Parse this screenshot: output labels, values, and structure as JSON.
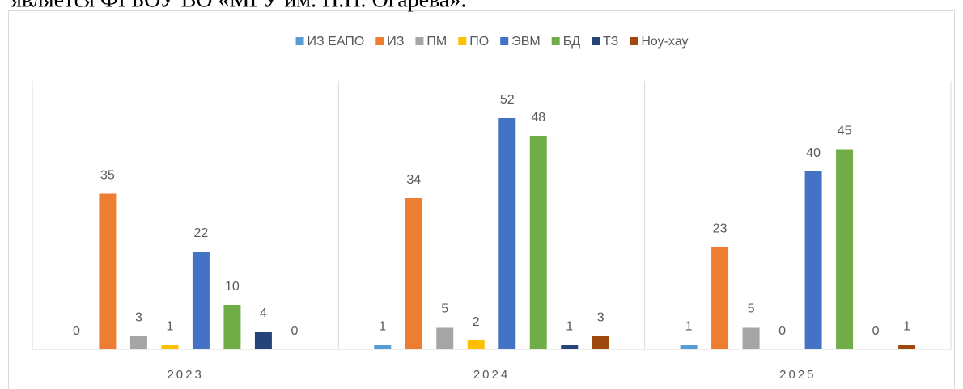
{
  "caption": "является ФГБОУ ВО «МГУ им. Н.П. Огарёва».",
  "chart_data": {
    "type": "bar",
    "categories": [
      "2023",
      "2024",
      "2025"
    ],
    "series": [
      {
        "name": "ИЗ ЕАПО",
        "color": "#5b9bd5",
        "values": [
          0,
          1,
          1
        ]
      },
      {
        "name": "ИЗ",
        "color": "#ed7d31",
        "values": [
          35,
          34,
          23
        ]
      },
      {
        "name": "ПМ",
        "color": "#a5a5a5",
        "values": [
          3,
          5,
          5
        ]
      },
      {
        "name": "ПО",
        "color": "#ffc000",
        "values": [
          1,
          2,
          0
        ]
      },
      {
        "name": "ЭВМ",
        "color": "#4472c4",
        "values": [
          22,
          52,
          40
        ]
      },
      {
        "name": "БД",
        "color": "#70ad47",
        "values": [
          10,
          48,
          45
        ]
      },
      {
        "name": "ТЗ",
        "color": "#264478",
        "values": [
          4,
          1,
          0
        ]
      },
      {
        "name": "Ноу-хау",
        "color": "#9e480e",
        "values": [
          0,
          3,
          1
        ]
      }
    ],
    "legend": "top"
  }
}
